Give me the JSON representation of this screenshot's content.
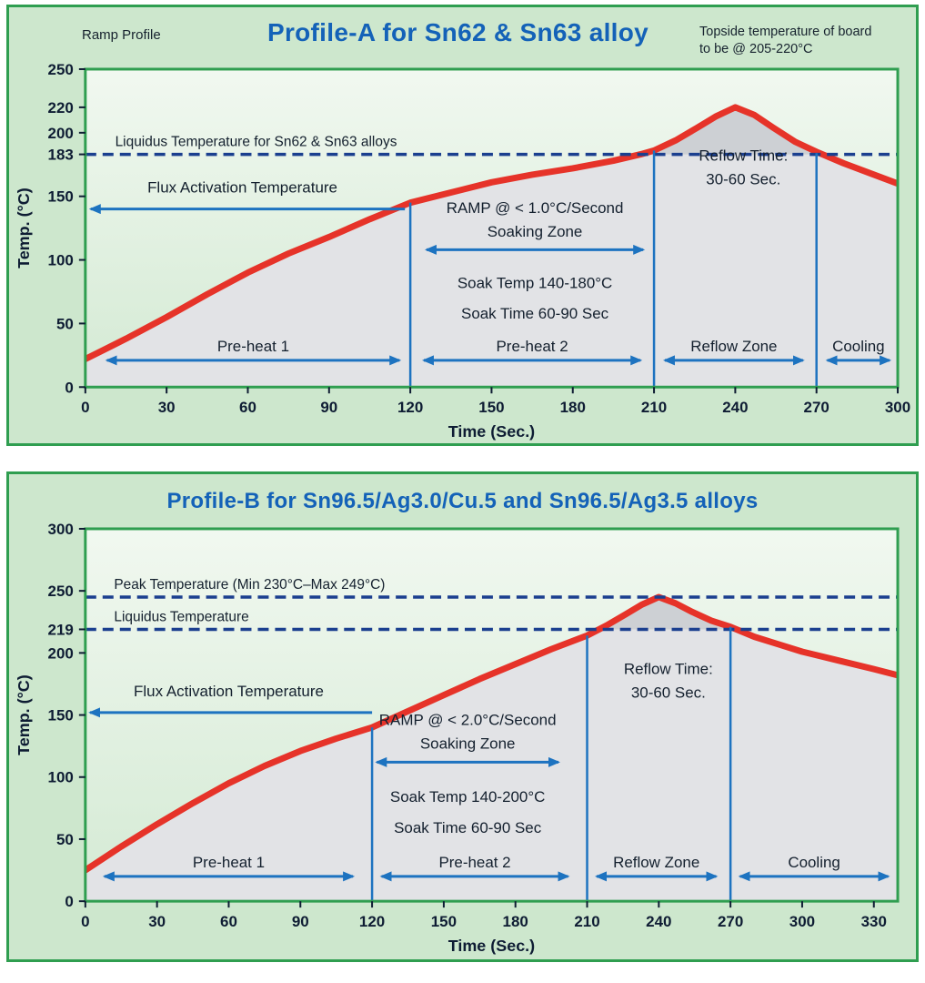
{
  "colors": {
    "panel_bg": "#cde7cd",
    "panel_border": "#2f9e50",
    "plot_bg_top": "#f1f8f0",
    "plot_bg_bottom": "#d4ead4",
    "under_curve": "#e2e3e6",
    "peak_shade": "#cdd0d4",
    "curve": "#e63329",
    "dashed": "#1b3f8f",
    "arrow": "#1d73c0",
    "title": "#1462b8",
    "tick": "#0e1c33"
  },
  "chart_data": [
    {
      "type": "line",
      "title": "Profile-A for Sn62 & Sn63 alloy",
      "corner_label": "Ramp Profile",
      "note_lines": [
        "Topside temperature of board",
        "to be @ 205-220°C"
      ],
      "xlabel": "Time (Sec.)",
      "ylabel": "Temp. (°C)",
      "xlim": [
        0,
        300
      ],
      "ylim": [
        0,
        250
      ],
      "x_ticks": [
        0,
        30,
        60,
        90,
        120,
        150,
        180,
        210,
        240,
        270,
        300
      ],
      "y_ticks": [
        0,
        50,
        100,
        150,
        183,
        200,
        220,
        250
      ],
      "series": [
        {
          "name": "reflow-temperature",
          "points": [
            [
              0,
              22
            ],
            [
              15,
              38
            ],
            [
              30,
              55
            ],
            [
              45,
              73
            ],
            [
              60,
              90
            ],
            [
              75,
              105
            ],
            [
              90,
              118
            ],
            [
              105,
              132
            ],
            [
              120,
              145
            ],
            [
              135,
              153
            ],
            [
              150,
              161
            ],
            [
              165,
              167
            ],
            [
              180,
              172
            ],
            [
              195,
              178
            ],
            [
              205,
              183
            ],
            [
              210,
              186
            ],
            [
              218,
              194
            ],
            [
              226,
              204
            ],
            [
              233,
              213
            ],
            [
              240,
              220
            ],
            [
              247,
              214
            ],
            [
              254,
              204
            ],
            [
              262,
              193
            ],
            [
              270,
              185
            ],
            [
              280,
              176
            ],
            [
              290,
              168
            ],
            [
              300,
              160
            ]
          ]
        }
      ],
      "dashed_lines": [
        {
          "y": 183,
          "label": "Liquidus Temperature for Sn62 & Sn63 alloys",
          "label_x": 11
        }
      ],
      "shade_above": 183,
      "vlines": [
        {
          "x": 120,
          "top": 145
        },
        {
          "x": 210,
          "top": 186
        },
        {
          "x": 270,
          "top": 184
        }
      ],
      "span_arrows": [
        {
          "label": "Pre-heat 1",
          "x1": 8,
          "x2": 116,
          "y": 21
        },
        {
          "label": "Pre-heat 2",
          "x1": 125,
          "x2": 205,
          "y": 21
        },
        {
          "label": "Reflow Zone",
          "x1": 214,
          "x2": 265,
          "y": 21
        },
        {
          "label": "Cooling",
          "x1": 274,
          "x2": 297,
          "y": 21
        },
        {
          "x1": 126,
          "x2": 206,
          "y": 108
        }
      ],
      "left_arrows": [
        {
          "label": "Flux Activation Temperature",
          "x1": 118,
          "x2": 2,
          "y": 140,
          "label_x": 58,
          "label_y": 153
        }
      ],
      "texts": [
        {
          "lines": [
            "RAMP @ < 1.0°C/Second",
            "Soaking Zone"
          ],
          "x": 166,
          "y": 137
        },
        {
          "lines": [
            "Soak Temp 140-180°C"
          ],
          "x": 166,
          "y": 78
        },
        {
          "lines": [
            "Soak Time 60-90 Sec"
          ],
          "x": 166,
          "y": 54
        },
        {
          "lines": [
            "Reflow Time:",
            "30-60 Sec."
          ],
          "x": 243,
          "y": 178
        }
      ]
    },
    {
      "type": "line",
      "title": "Profile-B for Sn96.5/Ag3.0/Cu.5 and Sn96.5/Ag3.5 alloys",
      "xlabel": "Time (Sec.)",
      "ylabel": "Temp. (°C)",
      "xlim": [
        0,
        340
      ],
      "ylim": [
        0,
        300
      ],
      "x_ticks": [
        0,
        30,
        60,
        90,
        120,
        150,
        180,
        210,
        240,
        270,
        300,
        330
      ],
      "y_ticks": [
        0,
        50,
        100,
        150,
        200,
        219,
        250,
        300
      ],
      "series": [
        {
          "name": "reflow-temperature",
          "points": [
            [
              0,
              25
            ],
            [
              15,
              44
            ],
            [
              30,
              62
            ],
            [
              45,
              79
            ],
            [
              60,
              95
            ],
            [
              75,
              109
            ],
            [
              90,
              121
            ],
            [
              105,
              131
            ],
            [
              120,
              140
            ],
            [
              135,
              153
            ],
            [
              150,
              166
            ],
            [
              165,
              179
            ],
            [
              180,
              191
            ],
            [
              195,
              203
            ],
            [
              210,
              214
            ],
            [
              218,
              222
            ],
            [
              226,
              231
            ],
            [
              233,
              239
            ],
            [
              240,
              245
            ],
            [
              247,
              240
            ],
            [
              254,
              233
            ],
            [
              262,
              226
            ],
            [
              270,
              221
            ],
            [
              280,
              213
            ],
            [
              290,
              207
            ],
            [
              300,
              201
            ],
            [
              315,
              194
            ],
            [
              330,
              187
            ],
            [
              340,
              182
            ]
          ]
        }
      ],
      "dashed_lines": [
        {
          "y": 245,
          "label": "Peak Temperature (Min 230°C–Max 249°C)",
          "label_x": 12
        },
        {
          "y": 219,
          "label": "Liquidus Temperature",
          "label_x": 12
        }
      ],
      "shade_above": 219,
      "vlines": [
        {
          "x": 120,
          "top": 140
        },
        {
          "x": 210,
          "top": 214
        },
        {
          "x": 270,
          "top": 221
        }
      ],
      "span_arrows": [
        {
          "label": "Pre-heat 1",
          "x1": 8,
          "x2": 112,
          "y": 20
        },
        {
          "label": "Pre-heat 2",
          "x1": 124,
          "x2": 202,
          "y": 20
        },
        {
          "label": "Reflow Zone",
          "x1": 214,
          "x2": 264,
          "y": 20
        },
        {
          "label": "Cooling",
          "x1": 274,
          "x2": 336,
          "y": 20
        },
        {
          "x1": 122,
          "x2": 198,
          "y": 112
        }
      ],
      "left_arrows": [
        {
          "label": "Flux Activation Temperature",
          "x1": 120,
          "x2": 2,
          "y": 152,
          "label_x": 60,
          "label_y": 165
        }
      ],
      "texts": [
        {
          "lines": [
            "RAMP @ < 2.0°C/Second",
            "Soaking Zone"
          ],
          "x": 160,
          "y": 142
        },
        {
          "lines": [
            "Soak Temp 140-200°C"
          ],
          "x": 160,
          "y": 80
        },
        {
          "lines": [
            "Soak Time 60-90 Sec"
          ],
          "x": 160,
          "y": 55
        },
        {
          "lines": [
            "Reflow Time:",
            "30-60 Sec."
          ],
          "x": 244,
          "y": 183
        }
      ]
    }
  ]
}
